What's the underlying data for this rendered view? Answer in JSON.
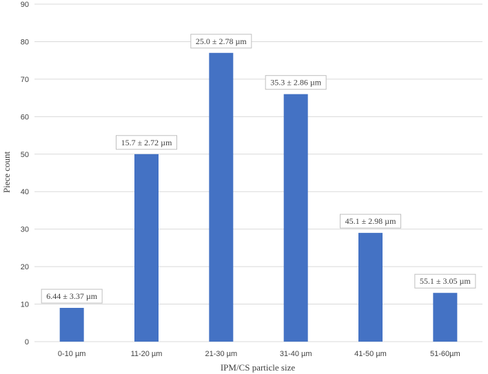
{
  "chart_data": {
    "type": "bar",
    "categories": [
      "0-10 µm",
      "11-20 µm",
      "21-30 µm",
      "31-40 µm",
      "41-50 µm",
      "51-60µm"
    ],
    "values": [
      9,
      50,
      77,
      66,
      29,
      13
    ],
    "data_labels": [
      "6.44 ± 3.37  µm",
      "15.7 ± 2.72  µm",
      "25.0 ± 2.78  µm",
      "35.3 ± 2.86  µm",
      "45.1 ± 2.98  µm",
      "55.1 ± 3.05  µm"
    ],
    "xlabel": "IPM/CS particle size",
    "ylabel": "Piece count",
    "ylim": [
      0,
      90
    ],
    "yticks": [
      "0",
      "10",
      "20",
      "30",
      "40",
      "50",
      "60",
      "70",
      "80",
      "90"
    ],
    "grid": true,
    "bar_color": "#4472c4"
  }
}
